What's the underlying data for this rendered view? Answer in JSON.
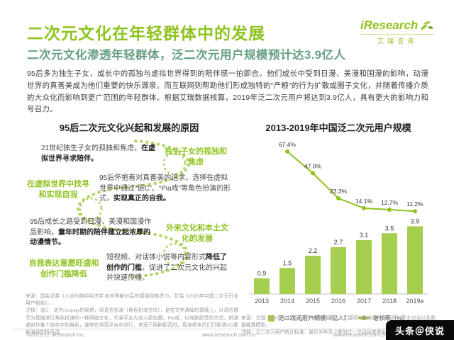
{
  "header": {
    "title": "二次元文化在年轻群体中的发展",
    "logo": {
      "brand": "iResearch",
      "brand_cn": "艾瑞咨询"
    }
  },
  "subtitle": "二次元文化渗透年轻群体，泛二次元用户规模预计达3.9亿人",
  "intro": "95后多为独生子女，成长中的孤独与虚拟世界得到的陪伴感一拍即合。他们成长中受到日漫、美漫和国漫的影响，动漫世界的真善美成为他们重要的快乐源泉。而互联网则帮助他们形成独特的“产粮”的行为扩散成圈子文化，并随着传播介质的大众化而影响到更广范围的年轻群体。根据艾瑞数据核算，2019年泛二次元用户将达到3.9亿人，具有更大的影响力和号召力。",
  "flow": {
    "heading": "95后二次元文化兴起和发展的原因",
    "block1_text": "21世纪独生子女的孤独和焦虑，",
    "block1_bold": "在虚拟世界寻求陪伴。",
    "label1": "独生子女的孤独和焦虑",
    "label2": "在虚拟世界中找寻和实现自我",
    "block2_text": "95后怀抱着对真善美的追求，选择在虚拟世界中通过“语C”、“Pia戏”等角色扮演的形式，",
    "block2_bold": "实现真正的自我。",
    "block3_text": "95后成长之路受到日漫、美漫和国漫作品影响，",
    "block3_bold": "童年时期的陪伴建立起浓厚的动漫情节。",
    "label3": "外来文化和本土文化的发展",
    "label4": "自我表达意愿旺盛和创作门槛降低",
    "block4_text": "短视频、对话体小说等内容形式",
    "block4_bold": "降低了创作的门槛",
    "block4_text2": "，促进了二次元文化的兴起并快速传播。"
  },
  "chart_data": {
    "type": "bar",
    "title": "2013-2019年中国泛二次元用户规模",
    "categories": [
      "2013",
      "2014",
      "2015",
      "2016",
      "2017",
      "2018",
      "2019e"
    ],
    "series": [
      {
        "name": "泛二次元用户规模（亿人）",
        "type": "bar",
        "values": [
          0.9,
          1.5,
          2.2,
          2.7,
          3.1,
          3.5,
          3.9
        ]
      },
      {
        "name": "增长率（%）",
        "type": "line",
        "values": [
          null,
          67.4,
          47.0,
          23.3,
          14.1,
          12.7,
          11.2
        ]
      }
    ],
    "ylabel": "",
    "xlabel": "",
    "legend_position": "bottom",
    "grid": false,
    "bar_color": "#a6ce4e",
    "line_color": "#8fc31f"
  },
  "notes_left": {
    "source": "来源：国金证券《人设与陪伴经济学:如何理解95后的孤独和焦虑?》，艾瑞《2015年中国二次元行业用户报告》。",
    "note": "注释：语C：语言cosplay的简称，即语言扮演（角色扮演方向），是在文字演绎的基础上，以语言描写为基础进行角色扮演的一种网络文化，代表平台为名人朋友圈。Pia戏：以戏剧配音的方式，扮演或创作某个剧本中的角色，通常在语音平台中进行。来源于网剧配音时，导演将演员们打断请NG重新演绎的拟声词。"
  },
  "notes_right": {
    "source": "来源：艾瑞《2019年中国动漫行业研究报告》，艾瑞研究院综合市场调研、行业访谈以及数据推算模型。",
    "note": "注释：泛二次元用户统计标准：最近半年至少参加过一次动画或漫画的消费群体。"
  },
  "footer": {
    "copyright": "©2019.12 iResearch Inc.",
    "site": "www.iresearch.com.cn"
  },
  "watermark": "头条＠侠说"
}
